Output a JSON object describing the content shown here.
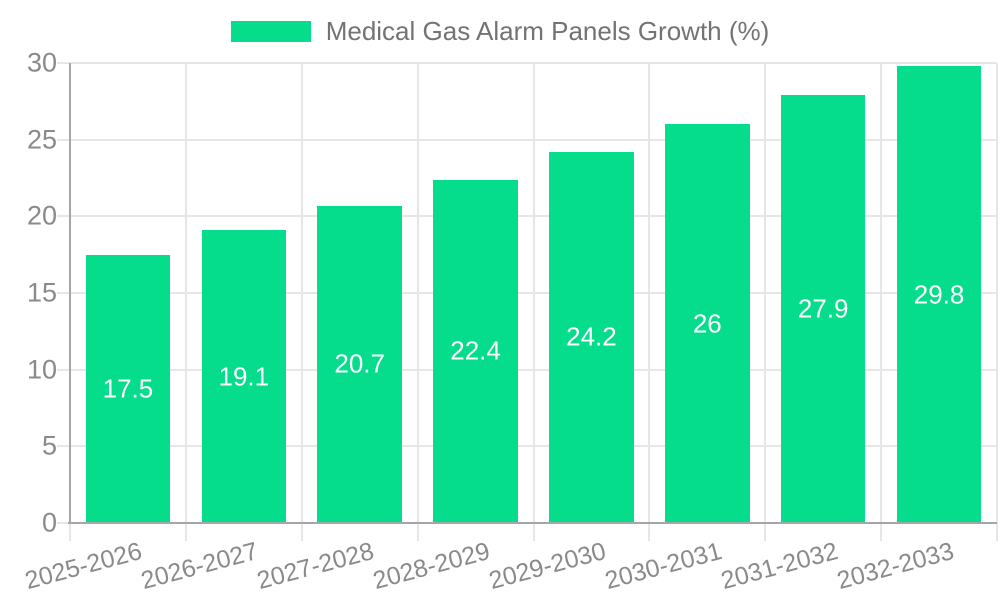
{
  "legend": {
    "label": "Medical Gas Alarm Panels Growth (%)"
  },
  "colors": {
    "bar": "#05dc8c",
    "grid": "#e6e6e6",
    "axis": "#a6a6a6",
    "tick_text": "#8a8a8a",
    "legend_text": "#737373",
    "bar_label": "#ffffff",
    "background": "#ffffff"
  },
  "chart_data": {
    "type": "bar",
    "title": "Medical Gas Alarm Panels Growth (%)",
    "categories": [
      "2025-2026",
      "2026-2027",
      "2027-2028",
      "2028-2029",
      "2029-2030",
      "2030-2031",
      "2031-2032",
      "2032-2033"
    ],
    "values": [
      17.5,
      19.1,
      20.7,
      22.4,
      24.2,
      26,
      27.9,
      29.8
    ],
    "value_labels": [
      "17.5",
      "19.1",
      "20.7",
      "22.4",
      "24.2",
      "26",
      "27.9",
      "29.8"
    ],
    "xlabel": "",
    "ylabel": "",
    "ylim": [
      0,
      30
    ],
    "yticks": [
      0,
      5,
      10,
      15,
      20,
      25,
      30
    ],
    "ytick_labels": [
      "0",
      "5",
      "10",
      "15",
      "20",
      "25",
      "30"
    ],
    "grid": true,
    "legend_position": "top-center",
    "value_label_position": "center-of-bar",
    "x_tick_rotation_deg": -15,
    "bar_width_fraction": 0.73
  }
}
